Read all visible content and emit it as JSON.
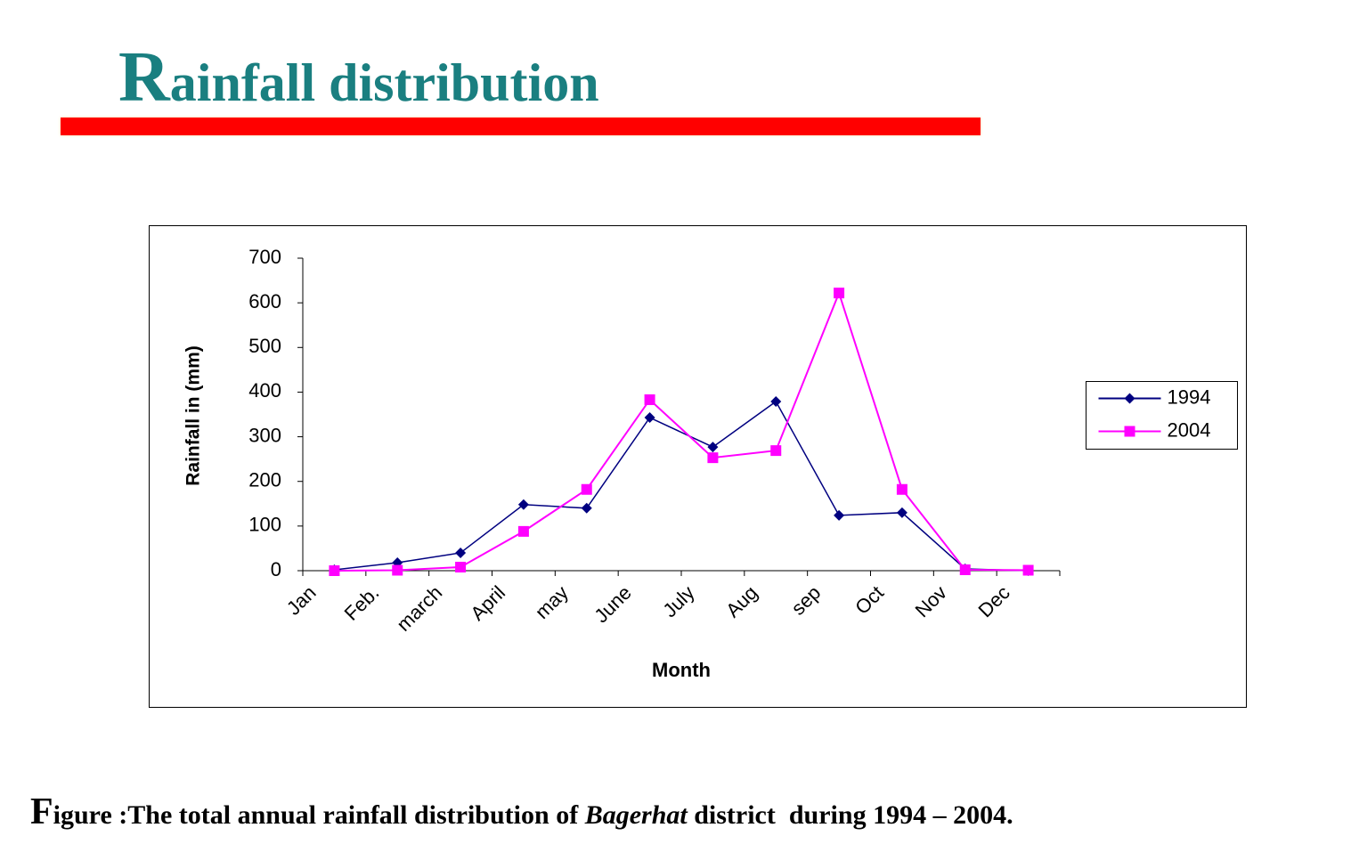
{
  "title": "Rainfall distribution",
  "caption": {
    "lead": "Figure :",
    "text": "The total annual rainfall distribution of ",
    "italic": "Bagerhat",
    "end": " district  during 1994 – 2004."
  },
  "chart_data": {
    "type": "line",
    "x_label": "Month",
    "y_label": "Rainfall in (mm)",
    "categories": [
      "Jan",
      "Feb.",
      "march",
      "April",
      "may",
      "June",
      "July",
      "Aug",
      "sep",
      "Oct",
      "Nov",
      "Dec"
    ],
    "series": [
      {
        "name": "1994",
        "color": "#000080",
        "marker": "diamond",
        "values": [
          2,
          18,
          40,
          148,
          140,
          343,
          277,
          379,
          124,
          130,
          4,
          0
        ]
      },
      {
        "name": "2004",
        "color": "#ff00ff",
        "marker": "square",
        "values": [
          0,
          1,
          8,
          88,
          182,
          383,
          253,
          269,
          622,
          182,
          2,
          1
        ]
      }
    ],
    "ylim": [
      0,
      700
    ],
    "yticks": [
      0,
      100,
      200,
      300,
      400,
      500,
      600,
      700
    ],
    "grid": false,
    "legend": "right"
  }
}
